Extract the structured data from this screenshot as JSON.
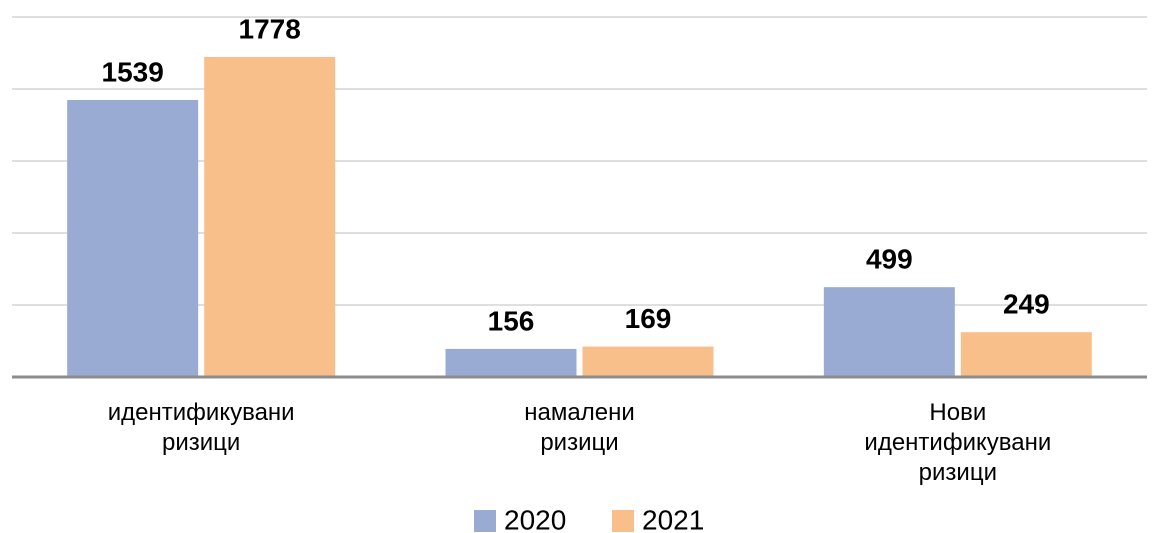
{
  "chart_data": {
    "type": "bar",
    "categories": [
      "идентификувани ризици",
      "намалени ризици",
      "Нови идентификувани ризици"
    ],
    "series": [
      {
        "name": "2020",
        "color": "#9aabd3",
        "values": [
          1539,
          156,
          499
        ]
      },
      {
        "name": "2021",
        "color": "#f9bf8a",
        "values": [
          1778,
          169,
          249
        ]
      }
    ],
    "ylim": [
      0,
      2000
    ],
    "yticks": [
      0,
      400,
      800,
      1200,
      1600,
      2000
    ],
    "grid": true,
    "legend": "bottom"
  }
}
